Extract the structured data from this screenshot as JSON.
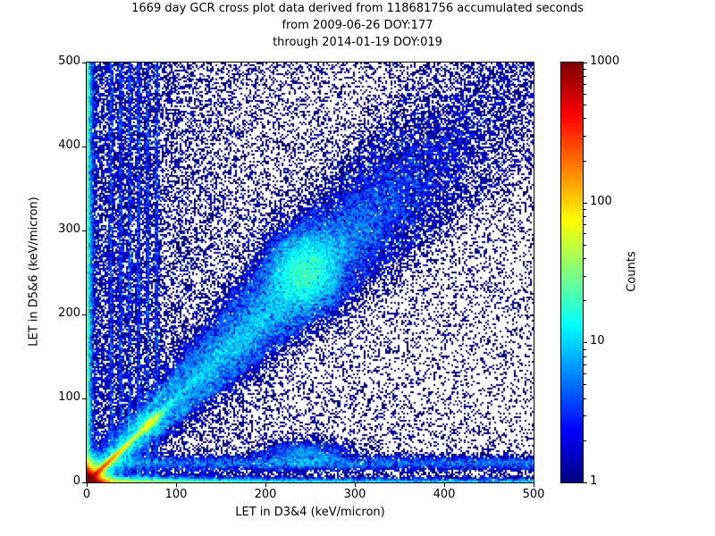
{
  "chart_data": {
    "type": "heatmap",
    "title": "1669 day GCR cross plot data derived from 118681756 accumulated seconds",
    "subtitle1": "from 2009-06-26 DOY:177",
    "subtitle2": "through 2014-01-19 DOY:019",
    "xlabel": "LET in D3&4 (keV/micron)",
    "ylabel": "LET in D5&6 (keV/micron)",
    "xlim": [
      0,
      500
    ],
    "ylim": [
      0,
      500
    ],
    "xticks": [
      0,
      100,
      200,
      300,
      400,
      500
    ],
    "yticks": [
      0,
      100,
      200,
      300,
      400,
      500
    ],
    "grid": false,
    "colorbar": {
      "label": "Counts",
      "scale": "log",
      "min": 1,
      "max": 1000,
      "ticks": [
        1,
        10,
        100,
        1000
      ],
      "colormap": "jet"
    },
    "seed": 7,
    "features": [
      {
        "type": "biexp",
        "sx": 5,
        "sy": 5,
        "n": 50000,
        "desc": "saturated hot core at origin"
      },
      {
        "type": "diag",
        "angle": 45,
        "tdist": "exp",
        "tscale": 32,
        "sigma": 1.6,
        "n": 18000,
        "desc": "bright low-LET diagonal streak"
      },
      {
        "type": "diag",
        "angle": 45,
        "tdist": "exp",
        "tscale": 150,
        "sigma": 12,
        "n": 6000,
        "desc": "diagonal halo near origin"
      },
      {
        "type": "diag",
        "angle": 45,
        "tdist": "gauss",
        "tmean": 100,
        "tsigma": 10,
        "sigma": 3.5,
        "n": 2500,
        "desc": "bright knot near (70,70)"
      },
      {
        "type": "diag",
        "angle": 45,
        "tdist": "gauss",
        "tmean": 330,
        "tsigma": 130,
        "sigma": 8,
        "sigmak": 0.05,
        "n": 30000,
        "desc": "main GCR diagonal band"
      },
      {
        "type": "blob",
        "x0": 243,
        "y0": 252,
        "sx": 22,
        "sy": 26,
        "n": 11000,
        "desc": "dense knot in diagonal band"
      },
      {
        "type": "diag",
        "angle": 45,
        "tdist": "uniform",
        "t0": 0,
        "t1": 707,
        "sigma": 5,
        "sigmak": 0.07,
        "n": 12000,
        "desc": "full-length diagonal band"
      },
      {
        "type": "diag",
        "angle": 52,
        "tdist": "exp",
        "tscale": 200,
        "sigma": 2.5,
        "n": 1500,
        "desc": "faint fan line above diagonal"
      },
      {
        "type": "diag",
        "angle": 38,
        "tdist": "exp",
        "tscale": 200,
        "sigma": 2.5,
        "n": 1500,
        "desc": "faint fan line below diagonal"
      },
      {
        "type": "hband",
        "y0": 23,
        "sy": 5,
        "x0": 0,
        "x1": 500,
        "n": 7000,
        "desc": "horizontal band near y=23"
      },
      {
        "type": "blob",
        "x0": 245,
        "y0": 34,
        "sx": 28,
        "sy": 9,
        "n": 2200,
        "desc": "bump on horizontal band"
      },
      {
        "type": "vline",
        "x0": 27,
        "sx": 1.3,
        "n": 1100,
        "desc": "vertical striation"
      },
      {
        "type": "vline",
        "x0": 38,
        "sx": 1.3,
        "n": 1100,
        "desc": "vertical striation"
      },
      {
        "type": "vline",
        "x0": 48,
        "sx": 1.3,
        "n": 1100,
        "desc": "vertical striation"
      },
      {
        "type": "vline",
        "x0": 58,
        "sx": 1.3,
        "n": 1100,
        "desc": "vertical striation"
      },
      {
        "type": "vline",
        "x0": 68,
        "sx": 1.3,
        "n": 1100,
        "desc": "vertical striation"
      },
      {
        "type": "vline",
        "x0": 78,
        "sx": 1.3,
        "n": 1100,
        "desc": "vertical striation"
      },
      {
        "type": "edgecol",
        "sx": 2.5,
        "n": 9000,
        "desc": "dense column along y-axis"
      },
      {
        "type": "edgerow",
        "sy": 2.5,
        "mix": 0.6,
        "xscale": 80,
        "n": 10000,
        "desc": "dense row along x-axis"
      },
      {
        "type": "uniform",
        "n": 15000,
        "desc": "uniform background speckle"
      },
      {
        "type": "xexp",
        "scale": 110,
        "n": 13000,
        "desc": "left-weighted background speckle"
      }
    ]
  }
}
